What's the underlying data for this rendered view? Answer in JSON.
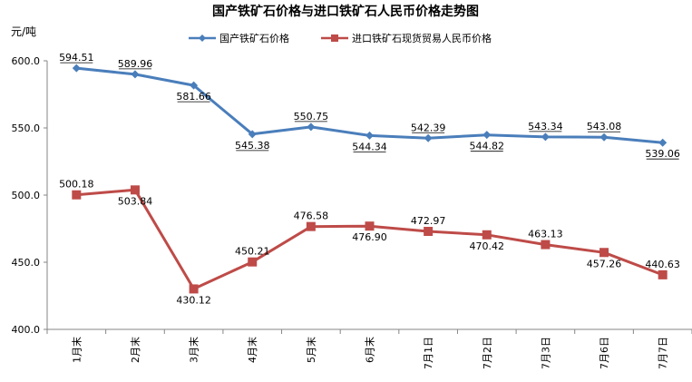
{
  "chart_data": {
    "type": "line",
    "title": "国产铁矿石价格与进口铁矿石人民币价格走势图",
    "ylabel": "元/吨",
    "xlabel": "",
    "ylim": [
      400,
      600
    ],
    "yticks": [
      "400.0",
      "450.0",
      "500.0",
      "550.0",
      "600.0"
    ],
    "categories": [
      "1月末",
      "2月末",
      "3月末",
      "4月末",
      "5月末",
      "6月末",
      "7月1日",
      "7月2日",
      "7月3日",
      "7月6日",
      "7月7日"
    ],
    "series": [
      {
        "name": "国产铁矿石价格",
        "color": "#4a7ebb",
        "marker": "diamond",
        "values": [
          594.51,
          589.96,
          581.66,
          545.38,
          550.75,
          544.34,
          542.39,
          544.82,
          543.34,
          543.08,
          539.06
        ],
        "labels": [
          "594.51",
          "589.96",
          "581.66",
          "545.38",
          "550.75",
          "544.34",
          "542.39",
          "544.82",
          "543.34",
          "543.08",
          "539.06"
        ]
      },
      {
        "name": "进口铁矿石现货贸易人民币价格",
        "color": "#be4b48",
        "marker": "square",
        "values": [
          500.18,
          503.84,
          430.12,
          450.21,
          476.58,
          476.9,
          472.97,
          470.42,
          463.13,
          457.26,
          440.63
        ],
        "labels": [
          "500.18",
          "503.84",
          "430.12",
          "450.21",
          "476.58",
          "476.90",
          "472.97",
          "470.42",
          "463.13",
          "457.26",
          "440.63"
        ]
      }
    ],
    "grid": false,
    "legend_position": "top"
  }
}
